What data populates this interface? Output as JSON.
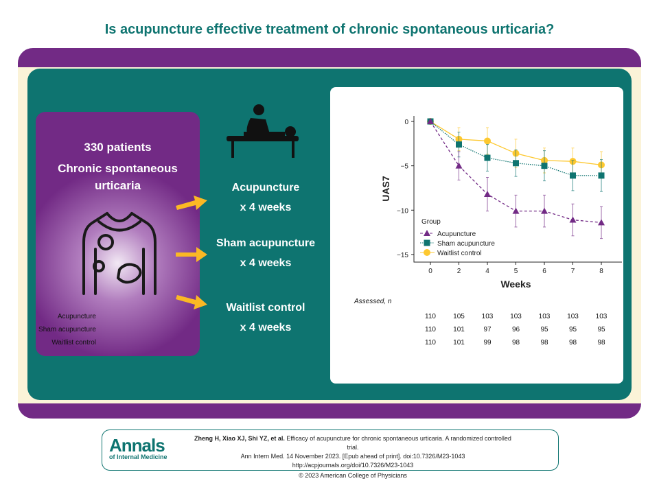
{
  "title": "Is acupuncture effective treatment of chronic spontaneous urticaria?",
  "population": {
    "count": "330 patients",
    "condition": "Chronic spontaneous urticaria"
  },
  "arms": [
    {
      "name": "Acupuncture",
      "duration": "x 4 weeks"
    },
    {
      "name": "Sham acupuncture",
      "duration": "x 4 weeks"
    },
    {
      "name": "Waitlist control",
      "duration": "x 4 weeks"
    }
  ],
  "colors": {
    "teal": "#0e7470",
    "purple": "#722a85",
    "yellow": "#fdc82f",
    "arrow": "#fbb824"
  },
  "chart_data": {
    "type": "line",
    "xlabel": "Weeks",
    "ylabel": "UAS7",
    "x": [
      "0",
      "2",
      "4",
      "5",
      "6",
      "7",
      "8"
    ],
    "ylim": [
      -15,
      0
    ],
    "yticks": [
      "0",
      "−5",
      "−10",
      "−15"
    ],
    "ytick_values": [
      0,
      -5,
      -10,
      -15
    ],
    "legend_title": "Group",
    "legend_position": "bottom-left",
    "series": [
      {
        "name": "Acupuncture",
        "color": "#722a85",
        "marker": "triangle",
        "dash": "dashed",
        "values": [
          0,
          -5.0,
          -8.2,
          -10.1,
          -10.1,
          -11.1,
          -11.4
        ],
        "err": [
          0,
          1.6,
          1.9,
          1.8,
          1.8,
          1.8,
          1.8
        ]
      },
      {
        "name": "Sham acupuncture",
        "color": "#0e7470",
        "marker": "square",
        "dash": "dotted",
        "values": [
          0,
          -2.6,
          -4.1,
          -4.7,
          -5.0,
          -6.1,
          -6.1
        ],
        "err": [
          0,
          1.4,
          1.5,
          1.5,
          1.7,
          1.7,
          1.8
        ]
      },
      {
        "name": "Waitlist control",
        "color": "#fdc82f",
        "marker": "circle",
        "dash": "solid",
        "values": [
          0,
          -2.0,
          -2.2,
          -3.6,
          -4.4,
          -4.5,
          -4.9
        ],
        "err": [
          0,
          1.3,
          1.5,
          1.6,
          1.4,
          1.5,
          1.5
        ]
      }
    ]
  },
  "assessed": {
    "header": "Assessed, n",
    "rows": [
      {
        "label": "Acupuncture",
        "values": [
          "110",
          "105",
          "103",
          "103",
          "103",
          "103",
          "103"
        ]
      },
      {
        "label": "Sham acupuncture",
        "values": [
          "110",
          "101",
          "97",
          "96",
          "95",
          "95",
          "95"
        ]
      },
      {
        "label": "Waitlist control",
        "values": [
          "110",
          "101",
          "99",
          "98",
          "98",
          "98",
          "98"
        ]
      }
    ]
  },
  "citation": {
    "authors": "Zheng H, Xiao XJ, Shi YZ, et al.",
    "title": "Efficacy of acupuncture for chronic spontaneous urticaria. A randomized controlled trial.",
    "journal": "Ann Intern Med. 14 November 2023. [Epub ahead of print]. doi:10.7326/M23-1043",
    "url": "http://acpjournals.org/doi/10.7326/M23-1043",
    "copyright": "© 2023 American College of Physicians"
  },
  "logo": {
    "name": "Annals",
    "subtitle": "of Internal Medicine"
  }
}
